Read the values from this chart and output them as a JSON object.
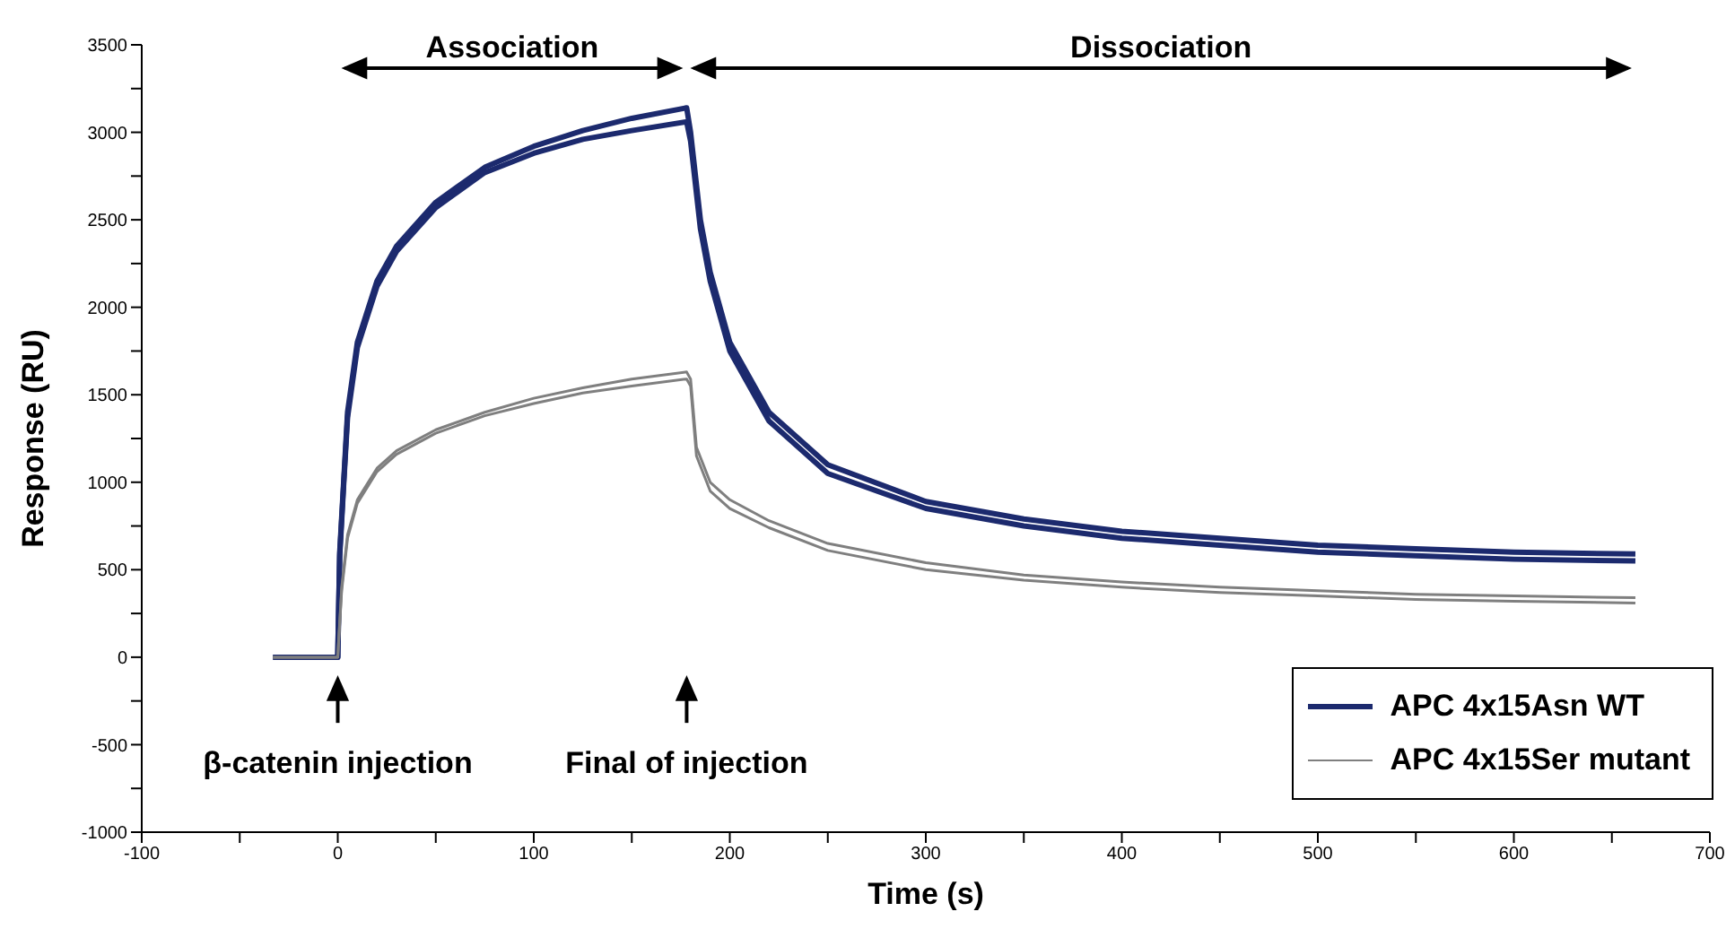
{
  "chart_data": {
    "type": "line",
    "xlabel": "Time (s)",
    "ylabel": "Response (RU)",
    "xlim": [
      -100,
      700
    ],
    "ylim": [
      -1000,
      3500
    ],
    "xticks": [
      -100,
      {
        "value": -50,
        "label": null
      },
      0,
      {
        "value": 50,
        "label": null
      },
      100,
      {
        "value": 150,
        "label": null
      },
      200,
      {
        "value": 250,
        "label": null
      },
      300,
      {
        "value": 350,
        "label": null
      },
      400,
      {
        "value": 450,
        "label": null
      },
      500,
      {
        "value": 550,
        "label": null
      },
      600,
      {
        "value": 650,
        "label": null
      },
      700
    ],
    "yticks": [
      -1000,
      {
        "value": -750,
        "label": null
      },
      -500,
      {
        "value": -250,
        "label": null
      },
      0,
      {
        "value": 250,
        "label": null
      },
      500,
      {
        "value": 750,
        "label": null
      },
      1000,
      {
        "value": 1250,
        "label": null
      },
      1500,
      {
        "value": 1750,
        "label": null
      },
      2000,
      {
        "value": 2250,
        "label": null
      },
      2500,
      {
        "value": 2750,
        "label": null
      },
      3000,
      {
        "value": 3250,
        "label": null
      },
      3500
    ],
    "legend": "bottom right",
    "series": [
      {
        "name": "APC 4x15Asn WT",
        "color": "#1c2a6e",
        "x": [
          -33,
          0,
          1,
          3,
          5,
          10,
          20,
          30,
          50,
          75,
          100,
          125,
          150,
          178,
          180,
          185,
          190,
          200,
          220,
          250,
          300,
          350,
          400,
          450,
          500,
          550,
          600,
          662
        ],
        "values": [
          0,
          0,
          600,
          1000,
          1400,
          1800,
          2150,
          2350,
          2600,
          2800,
          2920,
          3010,
          3080,
          3140,
          3000,
          2500,
          2200,
          1800,
          1400,
          1100,
          890,
          790,
          720,
          680,
          640,
          620,
          600,
          590
        ]
      },
      {
        "color": "#1c2a6e",
        "x": [
          -33,
          0,
          1,
          3,
          5,
          10,
          20,
          30,
          50,
          75,
          100,
          125,
          150,
          178,
          180,
          185,
          190,
          200,
          220,
          250,
          300,
          350,
          400,
          450,
          500,
          550,
          600,
          662
        ],
        "values": [
          0,
          0,
          580,
          980,
          1370,
          1770,
          2120,
          2320,
          2570,
          2770,
          2880,
          2960,
          3010,
          3060,
          2950,
          2450,
          2150,
          1750,
          1350,
          1050,
          850,
          750,
          680,
          640,
          600,
          580,
          560,
          550
        ]
      },
      {
        "name": "APC 4x15Ser mutant",
        "color": "#7f7f7f",
        "x": [
          -33,
          0,
          2,
          5,
          10,
          20,
          30,
          50,
          75,
          100,
          125,
          150,
          178,
          180,
          183,
          190,
          200,
          220,
          250,
          300,
          350,
          400,
          450,
          500,
          550,
          600,
          662
        ],
        "values": [
          0,
          0,
          400,
          700,
          900,
          1080,
          1180,
          1300,
          1400,
          1480,
          1540,
          1590,
          1630,
          1590,
          1200,
          1000,
          900,
          780,
          650,
          540,
          470,
          430,
          400,
          380,
          360,
          350,
          340
        ]
      },
      {
        "color": "#7f7f7f",
        "x": [
          -33,
          0,
          2,
          5,
          10,
          20,
          30,
          50,
          75,
          100,
          125,
          150,
          178,
          180,
          183,
          190,
          200,
          220,
          250,
          300,
          350,
          400,
          450,
          500,
          550,
          600,
          662
        ],
        "values": [
          0,
          0,
          380,
          680,
          880,
          1060,
          1160,
          1280,
          1380,
          1450,
          1510,
          1550,
          1590,
          1550,
          1150,
          950,
          850,
          740,
          610,
          500,
          440,
          400,
          370,
          350,
          330,
          320,
          310
        ]
      }
    ],
    "annotations": [
      "Association",
      "Dissociation",
      "β-catenin injection",
      "Final of injection"
    ]
  }
}
